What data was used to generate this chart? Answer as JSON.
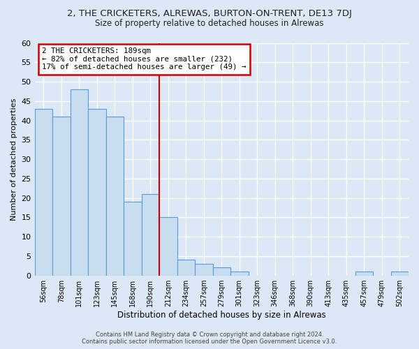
{
  "title": "2, THE CRICKETERS, ALREWAS, BURTON-ON-TRENT, DE13 7DJ",
  "subtitle": "Size of property relative to detached houses in Alrewas",
  "xlabel": "Distribution of detached houses by size in Alrewas",
  "ylabel": "Number of detached properties",
  "bar_labels": [
    "56sqm",
    "78sqm",
    "101sqm",
    "123sqm",
    "145sqm",
    "168sqm",
    "190sqm",
    "212sqm",
    "234sqm",
    "257sqm",
    "279sqm",
    "301sqm",
    "323sqm",
    "346sqm",
    "368sqm",
    "390sqm",
    "413sqm",
    "435sqm",
    "457sqm",
    "479sqm",
    "502sqm"
  ],
  "bar_values": [
    43,
    41,
    48,
    43,
    41,
    19,
    21,
    15,
    4,
    3,
    2,
    1,
    0,
    0,
    0,
    0,
    0,
    0,
    1,
    0,
    1
  ],
  "bar_color": "#c9ddf0",
  "bar_edge_color": "#5b9bd5",
  "vline_x": 6.5,
  "vline_color": "#cc0000",
  "ylim": [
    0,
    60
  ],
  "yticks": [
    0,
    5,
    10,
    15,
    20,
    25,
    30,
    35,
    40,
    45,
    50,
    55,
    60
  ],
  "annotation_title": "2 THE CRICKETERS: 189sqm",
  "annotation_line1": "← 82% of detached houses are smaller (232)",
  "annotation_line2": "17% of semi-detached houses are larger (49) →",
  "annotation_box_color": "#cc0000",
  "footer1": "Contains HM Land Registry data © Crown copyright and database right 2024.",
  "footer2": "Contains public sector information licensed under the Open Government Licence v3.0.",
  "bg_color": "#dce8f5",
  "plot_bg_color": "#dce8f5",
  "grid_color": "#ffffff",
  "title_fontsize": 9.5,
  "subtitle_fontsize": 8.5
}
